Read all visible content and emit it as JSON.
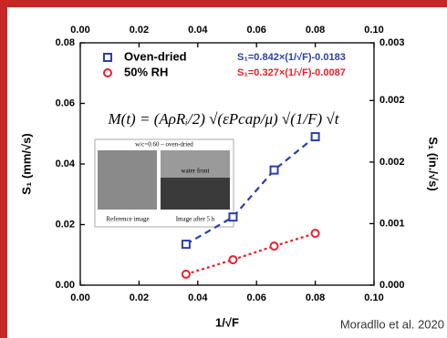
{
  "chart_data": {
    "type": "scatter",
    "xlabel": "1/√F",
    "ylabel": "S₁ (mm/√s)",
    "y2label": "S₁ (in./√s)",
    "xlim": [
      0,
      0.1
    ],
    "ylim": [
      0,
      0.08
    ],
    "y2lim": [
      0,
      0.00315
    ],
    "xticks": [
      {
        "value": 0,
        "label": "0.00"
      },
      {
        "value": 0.02,
        "label": "0.02"
      },
      {
        "value": 0.04,
        "label": "0.04"
      },
      {
        "value": 0.06,
        "label": "0.06"
      },
      {
        "value": 0.08,
        "label": "0.08"
      },
      {
        "value": 0.1,
        "label": "0.10"
      }
    ],
    "yticks": [
      {
        "value": 0,
        "label": "0.00"
      },
      {
        "value": 0.02,
        "label": "0.02"
      },
      {
        "value": 0.04,
        "label": "0.04"
      },
      {
        "value": 0.06,
        "label": "0.06"
      },
      {
        "value": 0.08,
        "label": "0.08"
      }
    ],
    "y2ticks": [
      {
        "value": 0,
        "label": "0.000"
      },
      {
        "value": 0.0008,
        "label": "0.001"
      },
      {
        "value": 0.0016,
        "label": "0.002"
      },
      {
        "value": 0.0024,
        "label": "0.002"
      },
      {
        "value": 0.00315,
        "label": "0.003"
      }
    ],
    "x": [
      0.036,
      0.052,
      0.066,
      0.08
    ],
    "series": [
      {
        "name": "Oven-dried",
        "color": "#2b3fa8",
        "marker": "square",
        "fit": "S₁=0.842×(1/√F)-0.0183",
        "values": [
          0.0135,
          0.0225,
          0.038,
          0.049
        ]
      },
      {
        "name": "50% RH",
        "color": "#e8202a",
        "marker": "circle",
        "fit": "S₁=0.327×(1/√F)-0.0087",
        "values": [
          0.0036,
          0.0084,
          0.0129,
          0.0171
        ]
      }
    ],
    "equation": "M(t) = (AρRᵢ/2) √(εPcap/μ) √(1/F) √t",
    "inset": {
      "header": "w/c=0.60 – oven-dried",
      "front": "water front",
      "left_caption": "Reference image",
      "right_caption": "Image after 5 h"
    },
    "credit": "Moradllo et al. 2020"
  }
}
